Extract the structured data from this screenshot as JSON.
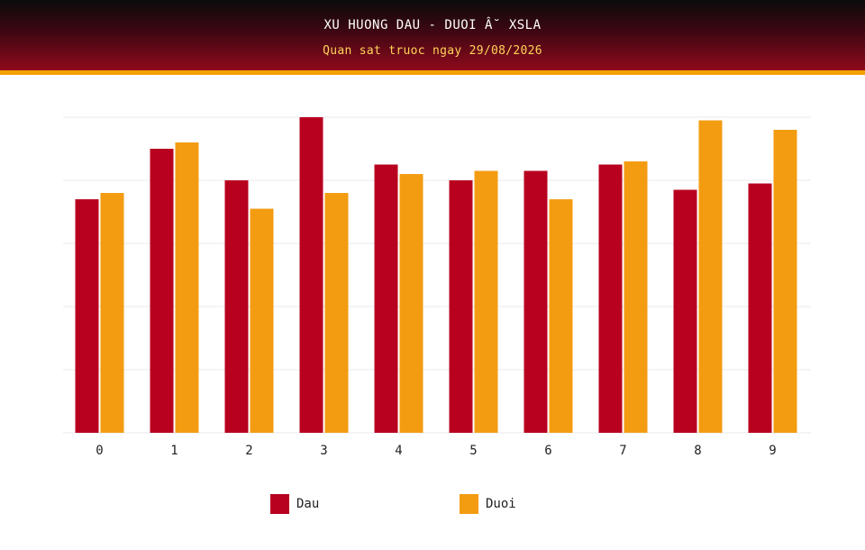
{
  "header": {
    "title": "XU HUONG DAU - DUOI Â˘ XSLA",
    "subtitle": "Quan sat truoc ngay 29/08/2026"
  },
  "colors": {
    "dau": "#b8001f",
    "duoi": "#f39c12",
    "grid": "#e8e8e8"
  },
  "chart_data": {
    "type": "bar",
    "categories": [
      "0",
      "1",
      "2",
      "3",
      "4",
      "5",
      "6",
      "7",
      "8",
      "9"
    ],
    "series": [
      {
        "name": "Dau",
        "values": [
          37,
          45,
          40,
          50,
          42.5,
          40,
          41.5,
          42.5,
          38.5,
          39.5
        ]
      },
      {
        "name": "Duoi",
        "values": [
          38,
          46,
          35.5,
          38,
          41,
          41.5,
          37,
          43,
          49.5,
          48
        ]
      }
    ],
    "ylim": [
      0,
      50
    ],
    "yticks": [
      0,
      10,
      20,
      30,
      40,
      50
    ],
    "grid": true,
    "legend_position": "bottom"
  }
}
